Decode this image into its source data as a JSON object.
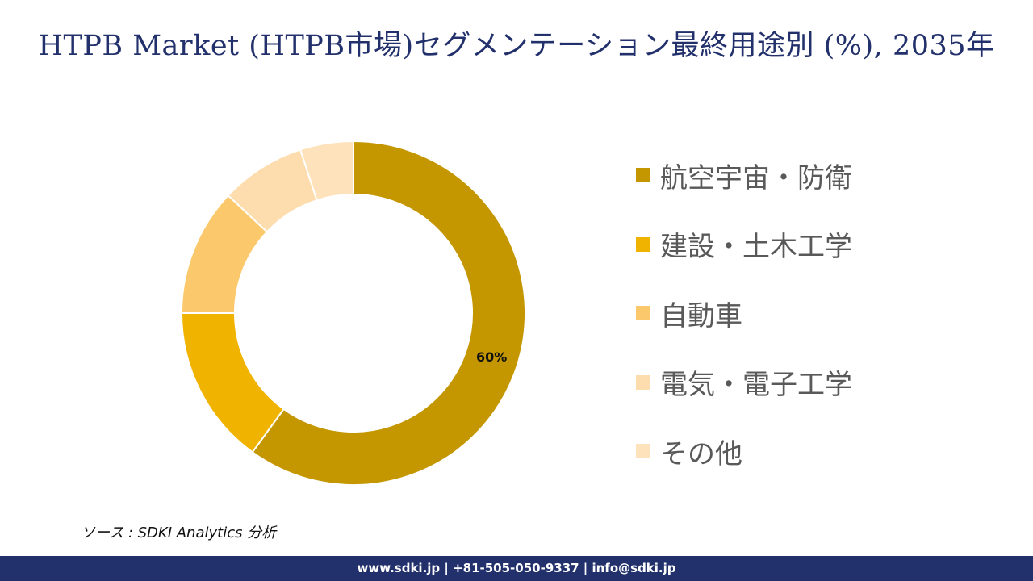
{
  "title": "HTPB Market (HTPB市場)セグメンテーション最終用途別 (%), 2035年",
  "chart_data": {
    "type": "pie",
    "style": "donut",
    "categories": [
      "航空宇宙・防衛",
      "建設・土木工学",
      "自動車",
      "電気・電子工学",
      "その他"
    ],
    "values": [
      60,
      15,
      12,
      8,
      5
    ],
    "colors": [
      "#c49600",
      "#f0b400",
      "#fbc96b",
      "#fddcad",
      "#fde2bc"
    ],
    "data_labels": [
      "60%",
      "",
      "",
      "",
      ""
    ],
    "legend_position": "right"
  },
  "source": "ソース : SDKI Analytics 分析",
  "footer": "www.sdki.jp | +81-505-050-9337 | info@sdki.jp"
}
